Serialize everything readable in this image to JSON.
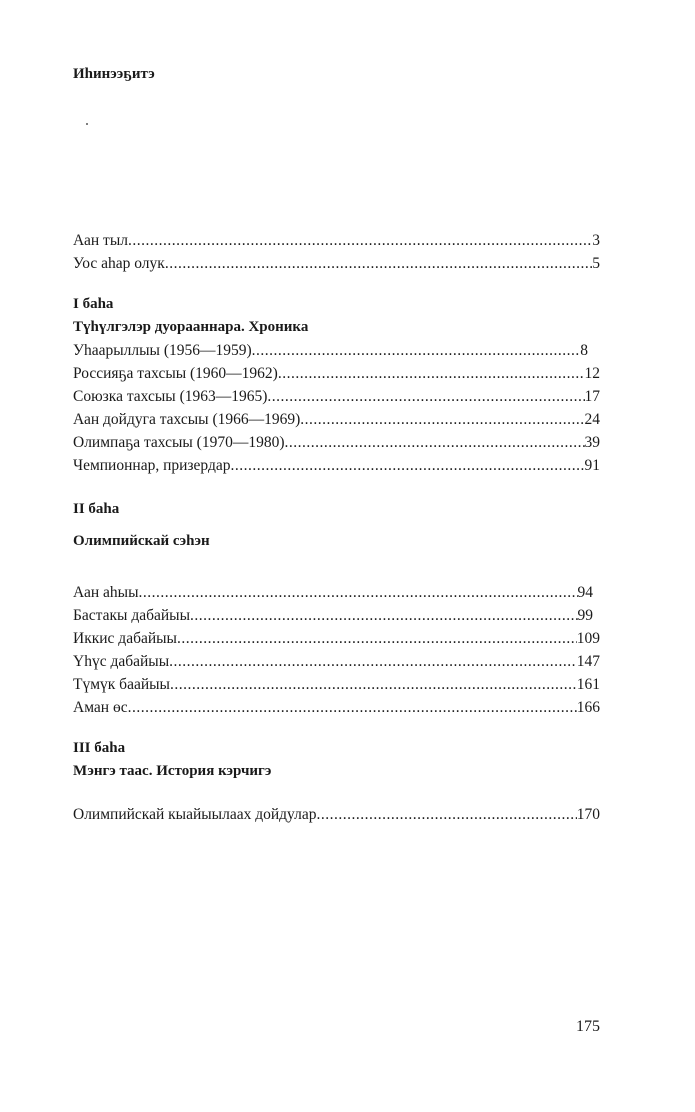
{
  "title": "Иhинээҕитэ",
  "intro": [
    {
      "label": "Аан тыл",
      "page": "3"
    },
    {
      "label": "Уос аhар олук",
      "page": "5"
    }
  ],
  "part1": {
    "heading": "I баhа",
    "subtitle": "Түhүлгэлэр дуорааннара. Хроника",
    "items": [
      {
        "label": "Уhаарыллыы (1956—1959)",
        "page": "8"
      },
      {
        "label": "Россияҕа тахсыы (1960—1962)",
        "page": "12"
      },
      {
        "label": "Союзка тахсыы (1963—1965)",
        "page": "17"
      },
      {
        "label": "Аан дойдуга тахсыы (1966—1969)",
        "page": "24"
      },
      {
        "label": "Олимпаҕа тахсыы (1970—1980)",
        "page": "39"
      },
      {
        "label": "Чемпионнар, призердар",
        "page": "91"
      }
    ]
  },
  "part2": {
    "heading": "II баhа",
    "subtitle": "Олимпийскай сэhэн",
    "items": [
      {
        "label": "Аан аhыы",
        "page": "94"
      },
      {
        "label": "Бастакы дабайыы",
        "page": "99"
      },
      {
        "label": "Иккис дабайыы",
        "page": "109"
      },
      {
        "label": "Үhүс дабайыы",
        "page": "147"
      },
      {
        "label": "Түмүк баайыы",
        "page": "161"
      },
      {
        "label": "Аман өс",
        "page": "166"
      }
    ]
  },
  "part3": {
    "heading": "III баhа",
    "subtitle": "Мэнгэ таас. История кэрчигэ",
    "items": [
      {
        "label": "Олимпийскай кыайыылаах дойдулар",
        "page": "170"
      }
    ]
  },
  "page_number": "175"
}
